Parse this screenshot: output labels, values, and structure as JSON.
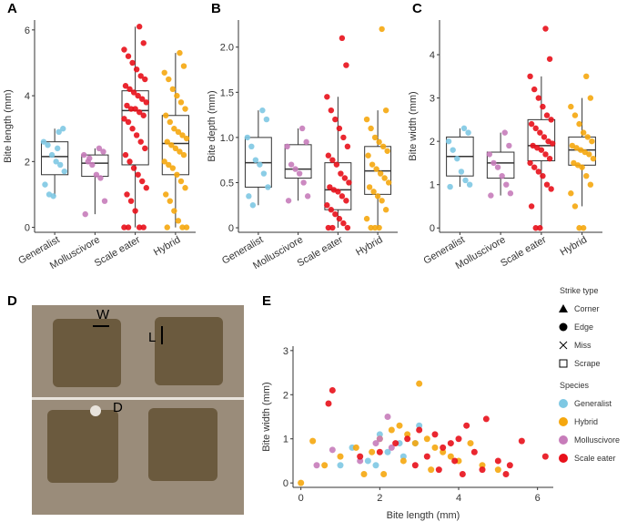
{
  "chart_data": [
    {
      "type": "box",
      "panel": "A",
      "ylabel": "Bite length (mm)",
      "categories": [
        "Generalist",
        "Molluscivore",
        "Scale eater",
        "Hybrid"
      ],
      "colors": [
        "#7ec8e3",
        "#c77cba",
        "#e8101a",
        "#f5a70e"
      ],
      "ylim": [
        -0.15,
        6.3
      ],
      "yticks": [
        0,
        2,
        4,
        6
      ],
      "boxes": [
        {
          "low": 0.95,
          "q1": 1.6,
          "median": 2.15,
          "q3": 2.6,
          "high": 3.0
        },
        {
          "low": 0.4,
          "q1": 1.55,
          "median": 1.95,
          "q3": 2.2,
          "high": 2.4
        },
        {
          "low": 0,
          "q1": 1.9,
          "median": 3.55,
          "q3": 4.15,
          "high": 6.1
        },
        {
          "low": 0,
          "q1": 1.6,
          "median": 2.55,
          "q3": 3.4,
          "high": 5.3
        }
      ],
      "points": [
        [
          2.9,
          3.0,
          2.6,
          2.5,
          2.2,
          2.0,
          1.9,
          1.7,
          1.3,
          1.0,
          0.95,
          2.4
        ],
        [
          2.4,
          2.3,
          2.2,
          2.0,
          1.9,
          1.6,
          1.5,
          0.8,
          0.4,
          2.1
        ],
        [
          6.1,
          5.6,
          5.4,
          5.2,
          5.0,
          4.8,
          4.6,
          4.5,
          4.3,
          4.2,
          4.1,
          4.0,
          3.9,
          3.8,
          3.7,
          3.6,
          3.6,
          3.5,
          3.4,
          3.3,
          3.2,
          3.0,
          2.8,
          2.6,
          2.4,
          2.2,
          2.0,
          1.8,
          1.6,
          1.4,
          1.2,
          1.0,
          0.8,
          0.5,
          0,
          0,
          0,
          0
        ],
        [
          5.3,
          4.9,
          4.7,
          4.5,
          4.2,
          4.0,
          3.8,
          3.6,
          3.4,
          3.2,
          3.0,
          2.9,
          2.8,
          2.7,
          2.6,
          2.5,
          2.4,
          2.3,
          2.2,
          2.0,
          1.9,
          1.8,
          1.6,
          1.4,
          1.2,
          1.0,
          0.8,
          0.5,
          0.2,
          0,
          0,
          0
        ]
      ]
    },
    {
      "type": "box",
      "panel": "B",
      "ylabel": "Bite depth (mm)",
      "categories": [
        "Generalist",
        "Molluscivore",
        "Scale eater",
        "Hybrid"
      ],
      "colors": [
        "#7ec8e3",
        "#c77cba",
        "#e8101a",
        "#f5a70e"
      ],
      "ylim": [
        -0.05,
        2.3
      ],
      "yticks": [
        0,
        0.5,
        {
          "value": 1,
          "label": "1.0"
        },
        1.5,
        {
          "value": 2,
          "label": "2.0"
        }
      ],
      "boxes": [
        {
          "low": 0.25,
          "q1": 0.45,
          "median": 0.72,
          "q3": 1.0,
          "high": 1.3
        },
        {
          "low": 0.3,
          "q1": 0.55,
          "median": 0.65,
          "q3": 0.92,
          "high": 1.1
        },
        {
          "low": 0,
          "q1": 0.2,
          "median": 0.42,
          "q3": 0.72,
          "high": 1.45
        },
        {
          "low": 0,
          "q1": 0.37,
          "median": 0.63,
          "q3": 0.9,
          "high": 1.3
        }
      ],
      "points": [
        [
          1.3,
          1.2,
          1.0,
          0.9,
          0.75,
          0.7,
          0.6,
          0.45,
          0.35,
          0.25
        ],
        [
          1.1,
          0.95,
          0.9,
          0.7,
          0.65,
          0.6,
          0.5,
          0.35,
          0.3
        ],
        [
          2.1,
          1.8,
          1.45,
          1.3,
          1.2,
          1.1,
          1.0,
          0.9,
          0.8,
          0.75,
          0.7,
          0.6,
          0.55,
          0.5,
          0.45,
          0.42,
          0.4,
          0.35,
          0.3,
          0.25,
          0.2,
          0.15,
          0.1,
          0.05,
          0,
          0,
          0
        ],
        [
          2.2,
          1.3,
          1.2,
          1.1,
          1.0,
          0.95,
          0.9,
          0.85,
          0.8,
          0.7,
          0.65,
          0.6,
          0.55,
          0.5,
          0.45,
          0.4,
          0.35,
          0.3,
          0.2,
          0.1,
          0,
          0,
          0
        ]
      ]
    },
    {
      "type": "box",
      "panel": "C",
      "ylabel": "Bite width (mm)",
      "categories": [
        "Generalist",
        "Molluscivore",
        "Scale eater",
        "Hybrid"
      ],
      "colors": [
        "#7ec8e3",
        "#c77cba",
        "#e8101a",
        "#f5a70e"
      ],
      "ylim": [
        -0.1,
        4.8
      ],
      "yticks": [
        0,
        1,
        2,
        3,
        4
      ],
      "boxes": [
        {
          "low": 0.95,
          "q1": 1.2,
          "median": 1.65,
          "q3": 2.1,
          "high": 2.3
        },
        {
          "low": 0.75,
          "q1": 1.15,
          "median": 1.5,
          "q3": 1.75,
          "high": 2.2
        },
        {
          "low": 0,
          "q1": 1.55,
          "median": 1.9,
          "q3": 2.5,
          "high": 3.5
        },
        {
          "low": 0.5,
          "q1": 1.45,
          "median": 1.8,
          "q3": 2.1,
          "high": 3.0
        }
      ],
      "points": [
        [
          2.3,
          2.2,
          2.0,
          1.8,
          1.6,
          1.3,
          1.1,
          1.0,
          0.95
        ],
        [
          2.2,
          1.9,
          1.7,
          1.5,
          1.4,
          1.2,
          1.0,
          0.8,
          0.75
        ],
        [
          4.6,
          3.9,
          3.5,
          3.2,
          3.0,
          2.8,
          2.6,
          2.5,
          2.4,
          2.3,
          2.2,
          2.1,
          2.0,
          1.95,
          1.9,
          1.85,
          1.8,
          1.7,
          1.6,
          1.5,
          1.4,
          1.3,
          1.2,
          1.0,
          0.9,
          0.5,
          0,
          0
        ],
        [
          3.5,
          3.0,
          2.8,
          2.6,
          2.4,
          2.2,
          2.1,
          2.0,
          1.9,
          1.85,
          1.8,
          1.75,
          1.7,
          1.6,
          1.5,
          1.45,
          1.4,
          1.2,
          1.0,
          0.8,
          0.5,
          0,
          0
        ]
      ]
    },
    {
      "type": "scatter",
      "panel": "E",
      "xlabel": "Bite length (mm)",
      "ylabel": "Bite width (mm)",
      "xlim": [
        -0.2,
        6.4
      ],
      "ylim": [
        -0.1,
        3.1
      ],
      "xticks": [
        0,
        2,
        4,
        6
      ],
      "yticks": [
        0,
        1,
        2,
        3
      ],
      "strike_title": "Strike type",
      "strike_types": [
        {
          "name": "Corner",
          "shape": "triangle"
        },
        {
          "name": "Edge",
          "shape": "circle"
        },
        {
          "name": "Miss",
          "shape": "cross"
        },
        {
          "name": "Scrape",
          "shape": "square"
        }
      ],
      "species_title": "Species",
      "series": [
        {
          "name": "Generalist",
          "color": "#7ec8e3",
          "x": [
            1.0,
            1.3,
            1.7,
            2.0,
            2.2,
            2.5,
            3.0,
            2.6,
            1.9,
            2.9
          ],
          "y": [
            0.4,
            0.8,
            0.5,
            1.1,
            0.7,
            0.9,
            1.3,
            0.6,
            0.4,
            0.9
          ]
        },
        {
          "name": "Hybrid",
          "color": "#f5a70e",
          "x": [
            0.3,
            0.6,
            1.0,
            1.4,
            1.8,
            2.0,
            2.3,
            2.5,
            2.7,
            2.9,
            3.0,
            3.2,
            3.4,
            3.6,
            3.8,
            4.0,
            4.3,
            4.6,
            5.0,
            2.1,
            2.6,
            3.3,
            1.6,
            0
          ],
          "y": [
            0.95,
            0.4,
            0.6,
            0.8,
            0.7,
            1.0,
            1.2,
            1.3,
            1.1,
            0.9,
            2.25,
            1.0,
            0.8,
            0.7,
            0.6,
            0.5,
            0.9,
            0.4,
            0.3,
            0.2,
            0.5,
            0.3,
            0.2,
            0
          ]
        },
        {
          "name": "Molluscivore",
          "color": "#c77cba",
          "x": [
            0.4,
            0.8,
            1.5,
            1.9,
            2.0,
            2.2,
            2.3
          ],
          "y": [
            0.4,
            0.75,
            0.5,
            0.9,
            1.0,
            1.5,
            0.8
          ]
        },
        {
          "name": "Scale eater",
          "color": "#e8101a",
          "x": [
            0.7,
            0.8,
            1.5,
            2.0,
            2.4,
            2.7,
            3.0,
            3.2,
            3.4,
            3.6,
            3.8,
            4.0,
            4.2,
            4.4,
            4.7,
            5.0,
            5.3,
            5.6,
            6.2,
            3.5,
            4.1,
            2.9,
            3.9,
            4.6,
            5.2
          ],
          "y": [
            1.8,
            2.1,
            0.6,
            0.7,
            0.9,
            1.0,
            1.2,
            0.6,
            1.1,
            0.8,
            0.9,
            1.0,
            1.3,
            0.7,
            1.45,
            0.5,
            0.4,
            0.95,
            0.6,
            0.3,
            0.2,
            0.4,
            0.5,
            0.3,
            0.2
          ]
        }
      ]
    }
  ],
  "photo": {
    "panel": "D",
    "labels": [
      "W",
      "L",
      "D"
    ]
  }
}
